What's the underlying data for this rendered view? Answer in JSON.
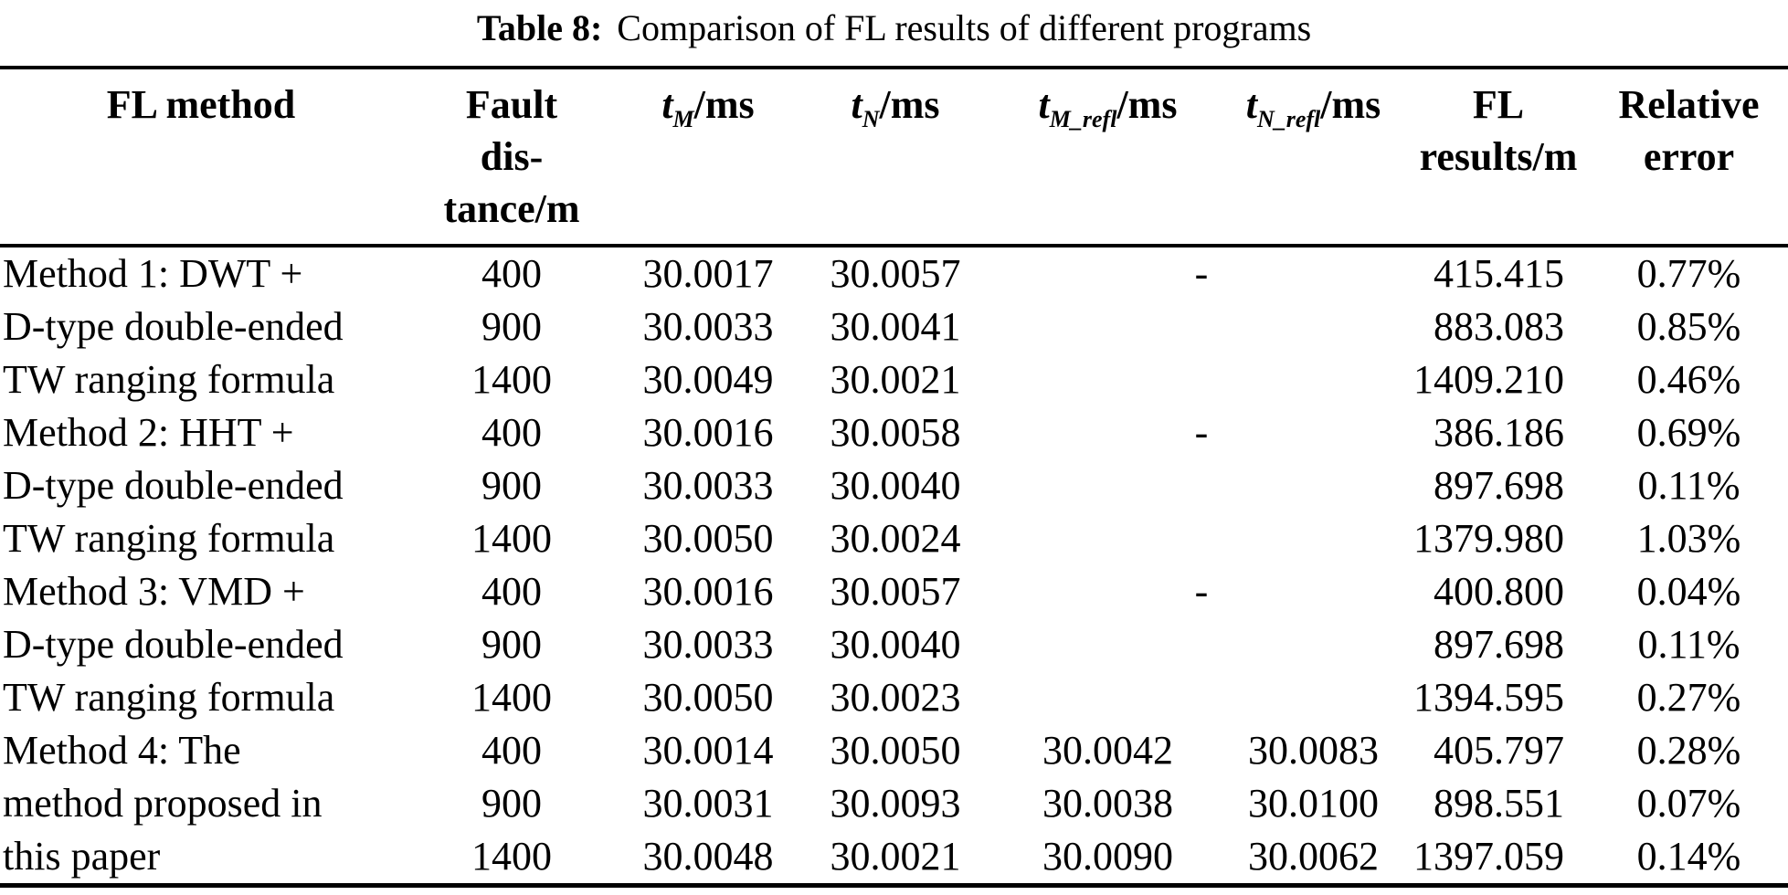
{
  "title": {
    "label": "Table 8:",
    "text": "Comparison of FL results of different programs"
  },
  "columns": [
    {
      "id": "method",
      "label_lines": [
        "FL method"
      ]
    },
    {
      "id": "fault_distance",
      "label_lines": [
        "Fault",
        "dis-",
        "tance/m"
      ]
    },
    {
      "id": "tM",
      "math": {
        "var": "t",
        "sub": "M",
        "unit": "/ms"
      }
    },
    {
      "id": "tN",
      "math": {
        "var": "t",
        "sub": "N",
        "unit": "/ms"
      }
    },
    {
      "id": "tM_refl",
      "math": {
        "var": "t",
        "sub": "M_refl",
        "unit": "/ms"
      }
    },
    {
      "id": "tN_refl",
      "math": {
        "var": "t",
        "sub": "N_refl",
        "unit": "/ms"
      }
    },
    {
      "id": "fl_results",
      "label_lines": [
        "FL",
        "results/m"
      ]
    },
    {
      "id": "relative_error",
      "label_lines": [
        "Relative",
        "error"
      ]
    }
  ],
  "rows": [
    {
      "method": "Method 1: DWT +",
      "fault_distance": "400",
      "tM": "30.0017",
      "tN": "30.0057",
      "tM_refl": "",
      "tN_refl": "",
      "refl": "-",
      "fl_results": "415.415",
      "relative_error": "0.77%"
    },
    {
      "method": "D-type double-ended",
      "fault_distance": "900",
      "tM": "30.0033",
      "tN": "30.0041",
      "tM_refl": "",
      "tN_refl": "",
      "refl": "",
      "fl_results": "883.083",
      "relative_error": "0.85%"
    },
    {
      "method": "TW ranging formula",
      "fault_distance": "1400",
      "tM": "30.0049",
      "tN": "30.0021",
      "tM_refl": "",
      "tN_refl": "",
      "refl": "",
      "fl_results": "1409.210",
      "relative_error": "0.46%"
    },
    {
      "method": "Method 2: HHT +",
      "fault_distance": "400",
      "tM": "30.0016",
      "tN": "30.0058",
      "tM_refl": "",
      "tN_refl": "",
      "refl": "-",
      "fl_results": "386.186",
      "relative_error": "0.69%"
    },
    {
      "method": "D-type double-ended",
      "fault_distance": "900",
      "tM": "30.0033",
      "tN": "30.0040",
      "tM_refl": "",
      "tN_refl": "",
      "refl": "",
      "fl_results": "897.698",
      "relative_error": "0.11%"
    },
    {
      "method": "TW ranging formula",
      "fault_distance": "1400",
      "tM": "30.0050",
      "tN": "30.0024",
      "tM_refl": "",
      "tN_refl": "",
      "refl": "",
      "fl_results": "1379.980",
      "relative_error": "1.03%"
    },
    {
      "method": "Method 3: VMD +",
      "fault_distance": "400",
      "tM": "30.0016",
      "tN": "30.0057",
      "tM_refl": "",
      "tN_refl": "",
      "refl": "-",
      "fl_results": "400.800",
      "relative_error": "0.04%"
    },
    {
      "method": "D-type double-ended",
      "fault_distance": "900",
      "tM": "30.0033",
      "tN": "30.0040",
      "tM_refl": "",
      "tN_refl": "",
      "refl": "",
      "fl_results": "897.698",
      "relative_error": "0.11%"
    },
    {
      "method": "TW ranging formula",
      "fault_distance": "1400",
      "tM": "30.0050",
      "tN": "30.0023",
      "tM_refl": "",
      "tN_refl": "",
      "refl": "",
      "fl_results": "1394.595",
      "relative_error": "0.27%"
    },
    {
      "method": "Method 4: The",
      "fault_distance": "400",
      "tM": "30.0014",
      "tN": "30.0050",
      "tM_refl": "30.0042",
      "tN_refl": "30.0083",
      "refl": "",
      "fl_results": "405.797",
      "relative_error": "0.28%"
    },
    {
      "method": "method proposed in",
      "fault_distance": "900",
      "tM": "30.0031",
      "tN": "30.0093",
      "tM_refl": "30.0038",
      "tN_refl": "30.0100",
      "refl": "",
      "fl_results": "898.551",
      "relative_error": "0.07%"
    },
    {
      "method": "this paper",
      "fault_distance": "1400",
      "tM": "30.0048",
      "tN": "30.0021",
      "tM_refl": "30.0090",
      "tN_refl": "30.0062",
      "refl": "",
      "fl_results": "1397.059",
      "relative_error": "0.14%"
    }
  ],
  "colors": {
    "text": "#000000",
    "background": "#ffffff",
    "rule": "#000000"
  }
}
